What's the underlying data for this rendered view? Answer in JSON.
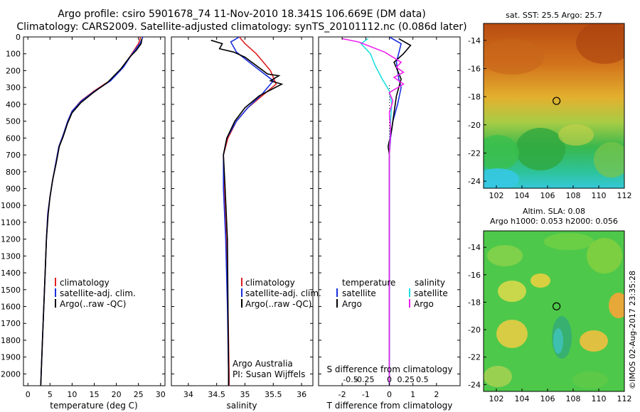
{
  "header": {
    "line1": "Argo profile: csiro 5901678_74 11-Nov-2010 18.341S 106.669E (DM data)",
    "line2": "Climatology: CARS2009. Satellite-adjusted climatology: synTS_20101112.nc (0.086d later)"
  },
  "colors": {
    "climatology": "#e02020",
    "satellite": "#1a2fe0",
    "argo": "#000000",
    "salinity_sat": "#22e0e0",
    "salinity_argo": "#ee22ee"
  },
  "chart_data": [
    {
      "type": "line",
      "id": "temperature",
      "xlabel": "temperature (deg C)",
      "xlim": [
        -1,
        31
      ],
      "xticks": [
        0,
        5,
        10,
        15,
        20,
        25,
        30
      ],
      "ylim": [
        2070,
        0
      ],
      "yticks": [
        0,
        100,
        200,
        300,
        400,
        500,
        600,
        700,
        800,
        900,
        1000,
        1100,
        1200,
        1300,
        1400,
        1500,
        1600,
        1700,
        1800,
        1900,
        2000
      ],
      "legend": [
        "climatology",
        "satellite-adj. clim.",
        "Argo(..raw -QC)"
      ],
      "series": [
        {
          "name": "climatology",
          "color": "#e02020",
          "points": [
            [
              25.5,
              0
            ],
            [
              25.0,
              40
            ],
            [
              23.5,
              100
            ],
            [
              21.5,
              180
            ],
            [
              18.5,
              260
            ],
            [
              15.0,
              320
            ],
            [
              12.0,
              380
            ],
            [
              10.0,
              440
            ],
            [
              9.0,
              500
            ],
            [
              8.0,
              580
            ],
            [
              7.0,
              650
            ],
            [
              6.3,
              750
            ],
            [
              5.6,
              850
            ],
            [
              5.0,
              950
            ],
            [
              4.5,
              1050
            ],
            [
              4.2,
              1200
            ],
            [
              3.9,
              1400
            ],
            [
              3.6,
              1600
            ],
            [
              3.3,
              1800
            ],
            [
              3.0,
              2000
            ],
            [
              2.9,
              2070
            ]
          ]
        },
        {
          "name": "satellite-adj. clim.",
          "color": "#1a2fe0",
          "points": [
            [
              26.0,
              0
            ],
            [
              25.3,
              40
            ],
            [
              23.6,
              100
            ],
            [
              21.6,
              180
            ],
            [
              18.7,
              260
            ],
            [
              15.2,
              320
            ],
            [
              12.1,
              380
            ],
            [
              10.0,
              440
            ],
            [
              9.0,
              500
            ],
            [
              8.0,
              580
            ],
            [
              7.0,
              650
            ],
            [
              6.3,
              750
            ],
            [
              5.6,
              850
            ],
            [
              5.0,
              950
            ],
            [
              4.5,
              1050
            ],
            [
              4.2,
              1200
            ],
            [
              3.9,
              1400
            ],
            [
              3.6,
              1600
            ],
            [
              3.3,
              1800
            ],
            [
              3.0,
              2000
            ],
            [
              2.9,
              2070
            ]
          ]
        },
        {
          "name": "Argo(..raw -QC)",
          "color": "#000000",
          "points": [
            [
              25.8,
              10
            ],
            [
              25.6,
              40
            ],
            [
              24.5,
              80
            ],
            [
              23.0,
              120
            ],
            [
              21.0,
              190
            ],
            [
              18.0,
              270
            ],
            [
              14.8,
              330
            ],
            [
              12.0,
              390
            ],
            [
              10.0,
              450
            ],
            [
              9.0,
              510
            ],
            [
              8.0,
              590
            ],
            [
              7.1,
              650
            ],
            [
              6.4,
              750
            ],
            [
              5.6,
              850
            ],
            [
              5.0,
              950
            ],
            [
              4.6,
              1050
            ],
            [
              4.2,
              1200
            ],
            [
              3.9,
              1400
            ],
            [
              3.6,
              1600
            ],
            [
              3.3,
              1800
            ],
            [
              3.0,
              2000
            ],
            [
              2.9,
              2070
            ]
          ]
        }
      ]
    },
    {
      "type": "line",
      "id": "salinity",
      "xlabel": "salinity",
      "xlim": [
        33.7,
        36.2
      ],
      "xticks": [
        34,
        34.5,
        35,
        35.5,
        36
      ],
      "ylim": [
        2070,
        0
      ],
      "legend": [
        "climatology",
        "satellite-adj. clim.",
        "Argo(..raw -QC)"
      ],
      "annotation": [
        "Argo Australia",
        "PI: Susan Wijffels"
      ],
      "series": [
        {
          "name": "climatology",
          "color": "#e02020",
          "points": [
            [
              34.9,
              0
            ],
            [
              35.0,
              40
            ],
            [
              35.2,
              100
            ],
            [
              35.45,
              200
            ],
            [
              35.55,
              280
            ],
            [
              35.3,
              350
            ],
            [
              35.05,
              420
            ],
            [
              34.85,
              500
            ],
            [
              34.7,
              600
            ],
            [
              34.62,
              700
            ],
            [
              34.63,
              900
            ],
            [
              34.67,
              1200
            ],
            [
              34.7,
              1600
            ],
            [
              34.72,
              2000
            ],
            [
              34.72,
              2070
            ]
          ]
        },
        {
          "name": "satellite-adj. clim.",
          "color": "#1a2fe0",
          "points": [
            [
              34.9,
              0
            ],
            [
              34.75,
              30
            ],
            [
              34.85,
              90
            ],
            [
              35.15,
              170
            ],
            [
              35.5,
              260
            ],
            [
              35.3,
              340
            ],
            [
              35.05,
              420
            ],
            [
              34.85,
              500
            ],
            [
              34.68,
              600
            ],
            [
              34.62,
              700
            ],
            [
              34.62,
              900
            ],
            [
              34.66,
              1200
            ],
            [
              34.69,
              1600
            ],
            [
              34.71,
              2000
            ],
            [
              34.71,
              2070
            ]
          ]
        },
        {
          "name": "Argo(..raw -QC)",
          "color": "#000000",
          "points": [
            [
              34.4,
              20
            ],
            [
              34.6,
              40
            ],
            [
              34.55,
              70
            ],
            [
              34.8,
              90
            ],
            [
              35.0,
              120
            ],
            [
              35.2,
              170
            ],
            [
              35.4,
              220
            ],
            [
              35.6,
              230
            ],
            [
              35.45,
              260
            ],
            [
              35.65,
              280
            ],
            [
              35.25,
              350
            ],
            [
              35.0,
              420
            ],
            [
              34.82,
              500
            ],
            [
              34.68,
              600
            ],
            [
              34.62,
              700
            ],
            [
              34.65,
              900
            ],
            [
              34.69,
              1200
            ],
            [
              34.7,
              1600
            ],
            [
              34.71,
              2000
            ],
            [
              34.71,
              2070
            ]
          ]
        }
      ]
    },
    {
      "type": "line",
      "id": "differences",
      "xlabel": "T difference from climatology",
      "xlabel_top": "S difference from climatology",
      "xlim": [
        -3,
        3
      ],
      "xticks": [
        -2,
        -1,
        0,
        1,
        2
      ],
      "xticks_top": [
        "-0.5",
        "-0.25",
        "0",
        "0.25",
        "0.5"
      ],
      "ylim": [
        2070,
        0
      ],
      "legend_temperature": {
        "title": "temperature",
        "items": [
          "satellite",
          "Argo"
        ]
      },
      "legend_salinity": {
        "title": "salinity",
        "items": [
          "satellite",
          "Argo"
        ]
      },
      "series": [
        {
          "name": "temperature satellite",
          "color": "#1a2fe0",
          "points": [
            [
              0.0,
              0
            ],
            [
              0.5,
              40
            ],
            [
              0.3,
              150
            ],
            [
              0.4,
              250
            ],
            [
              0.5,
              300
            ],
            [
              0.35,
              400
            ],
            [
              0.15,
              500
            ],
            [
              0.05,
              600
            ],
            [
              0.0,
              700
            ],
            [
              0.0,
              1000
            ],
            [
              0.0,
              1500
            ],
            [
              0.0,
              2070
            ]
          ]
        },
        {
          "name": "temperature Argo",
          "color": "#000000",
          "points": [
            [
              0.4,
              10
            ],
            [
              0.9,
              50
            ],
            [
              0.6,
              100
            ],
            [
              0.2,
              150
            ],
            [
              0.5,
              250
            ],
            [
              0.3,
              350
            ],
            [
              0.2,
              450
            ],
            [
              0.1,
              550
            ],
            [
              -0.05,
              650
            ],
            [
              0.0,
              700
            ],
            [
              0.0,
              1000
            ],
            [
              0.0,
              1500
            ],
            [
              0.0,
              2070
            ]
          ]
        },
        {
          "name": "salinity satellite",
          "color": "#22e0e0",
          "points": [
            [
              -0.9,
              10
            ],
            [
              -1.2,
              40
            ],
            [
              -0.8,
              100
            ],
            [
              -0.6,
              170
            ],
            [
              -0.3,
              250
            ],
            [
              0.0,
              320
            ],
            [
              0.1,
              400
            ],
            [
              0.05,
              500
            ],
            [
              0.0,
              700
            ],
            [
              0.0,
              1000
            ],
            [
              0.0,
              1500
            ],
            [
              0.0,
              2070
            ]
          ]
        },
        {
          "name": "salinity Argo",
          "color": "#ee22ee",
          "points": [
            [
              -2.0,
              10
            ],
            [
              -1.3,
              30
            ],
            [
              -0.2,
              90
            ],
            [
              0.5,
              150
            ],
            [
              0.3,
              180
            ],
            [
              0.6,
              210
            ],
            [
              0.2,
              240
            ],
            [
              0.6,
              280
            ],
            [
              0.0,
              330
            ],
            [
              0.15,
              380
            ],
            [
              0.0,
              450
            ],
            [
              0.05,
              550
            ],
            [
              0.0,
              700
            ],
            [
              0.0,
              1000
            ],
            [
              0.0,
              1500
            ],
            [
              0.0,
              2070
            ]
          ]
        }
      ]
    },
    {
      "type": "heatmap",
      "id": "sst-map",
      "title": "sat. SST: 25.5 Argo: 25.7",
      "xlim": [
        101,
        112
      ],
      "ylim": [
        -24.5,
        -12.8
      ],
      "xticks": [
        102,
        104,
        106,
        108,
        110,
        112
      ],
      "yticks": [
        -14,
        -16,
        -18,
        -20,
        -22,
        -24
      ],
      "marker": {
        "lon": 106.7,
        "lat": -18.3
      }
    },
    {
      "type": "heatmap",
      "id": "sla-map",
      "title_line1": "Altim. SLA: 0.08",
      "title_line2": "Argo h1000: 0.053 h2000: 0.056",
      "xlim": [
        101,
        112
      ],
      "ylim": [
        -24.5,
        -12.8
      ],
      "xticks": [
        102,
        104,
        106,
        108,
        110,
        112
      ],
      "yticks": [
        -14,
        -16,
        -18,
        -20,
        -22,
        -24
      ],
      "marker": {
        "lon": 106.7,
        "lat": -18.3
      }
    }
  ],
  "footer": {
    "credit": "©IMOS 02-Aug-2017 23:35:28"
  }
}
